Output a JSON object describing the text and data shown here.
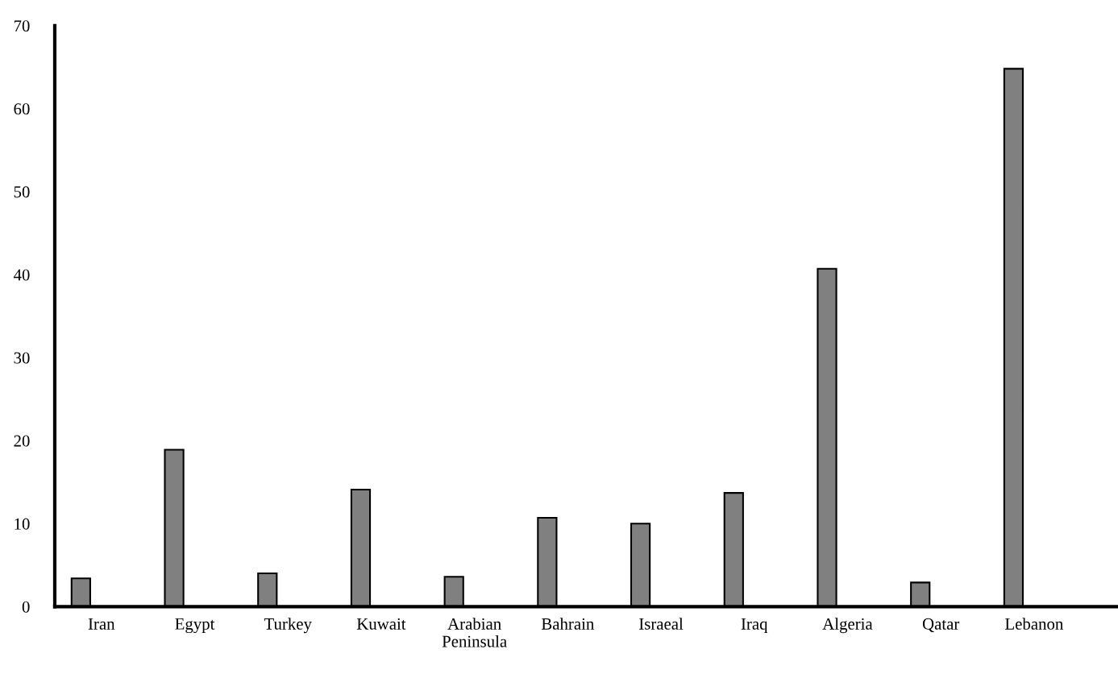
{
  "chart_data": {
    "type": "bar",
    "categories": [
      "Iran",
      "Egypt",
      "Turkey",
      "Kuwait",
      "Arabian\nPeninsula",
      "Bahrain",
      "Israeal",
      "Iraq",
      "Algeria",
      "Qatar",
      "Lebanon"
    ],
    "values": [
      3.4,
      18.9,
      4.0,
      14.1,
      3.6,
      10.7,
      10.0,
      13.7,
      40.7,
      2.9,
      64.8
    ],
    "color": "#808080",
    "ylim": [
      0,
      70
    ],
    "yticks": [
      0,
      10,
      20,
      30,
      40,
      50,
      60,
      70
    ],
    "grid": false,
    "legend": false
  }
}
